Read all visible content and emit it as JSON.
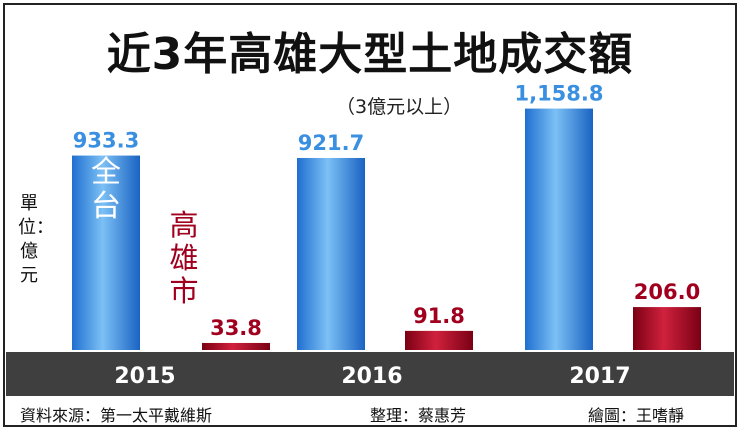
{
  "title": "近3年高雄大型土地成交額",
  "subtitle": "（3億元以上）",
  "unit_label": "單位：億元",
  "footer": {
    "source": "資料來源：第一太平戴維斯",
    "editor": "整理：蔡惠芳",
    "illustrator": "繪圖：王嗜靜"
  },
  "colors": {
    "taiwan": "#3a8fe0",
    "kaohsiung": "#a0001e",
    "axis_band": "#3f3f3f",
    "frame": "#222222"
  },
  "chart_data": {
    "type": "bar",
    "title": "近3年高雄大型土地成交額",
    "subtitle": "（3億元以上）",
    "categories": [
      "2015",
      "2016",
      "2017"
    ],
    "series": [
      {
        "name": "全台",
        "values": [
          933.3,
          921.7,
          1158.8
        ],
        "labels": [
          "933.3",
          "921.7",
          "1,158.8"
        ]
      },
      {
        "name": "高雄市",
        "values": [
          33.8,
          91.8,
          206.0
        ],
        "labels": [
          "33.8",
          "91.8",
          "206.0"
        ]
      }
    ],
    "ylim": [
      0,
      1200
    ],
    "grid": false,
    "legend": "inline-on-bars"
  }
}
